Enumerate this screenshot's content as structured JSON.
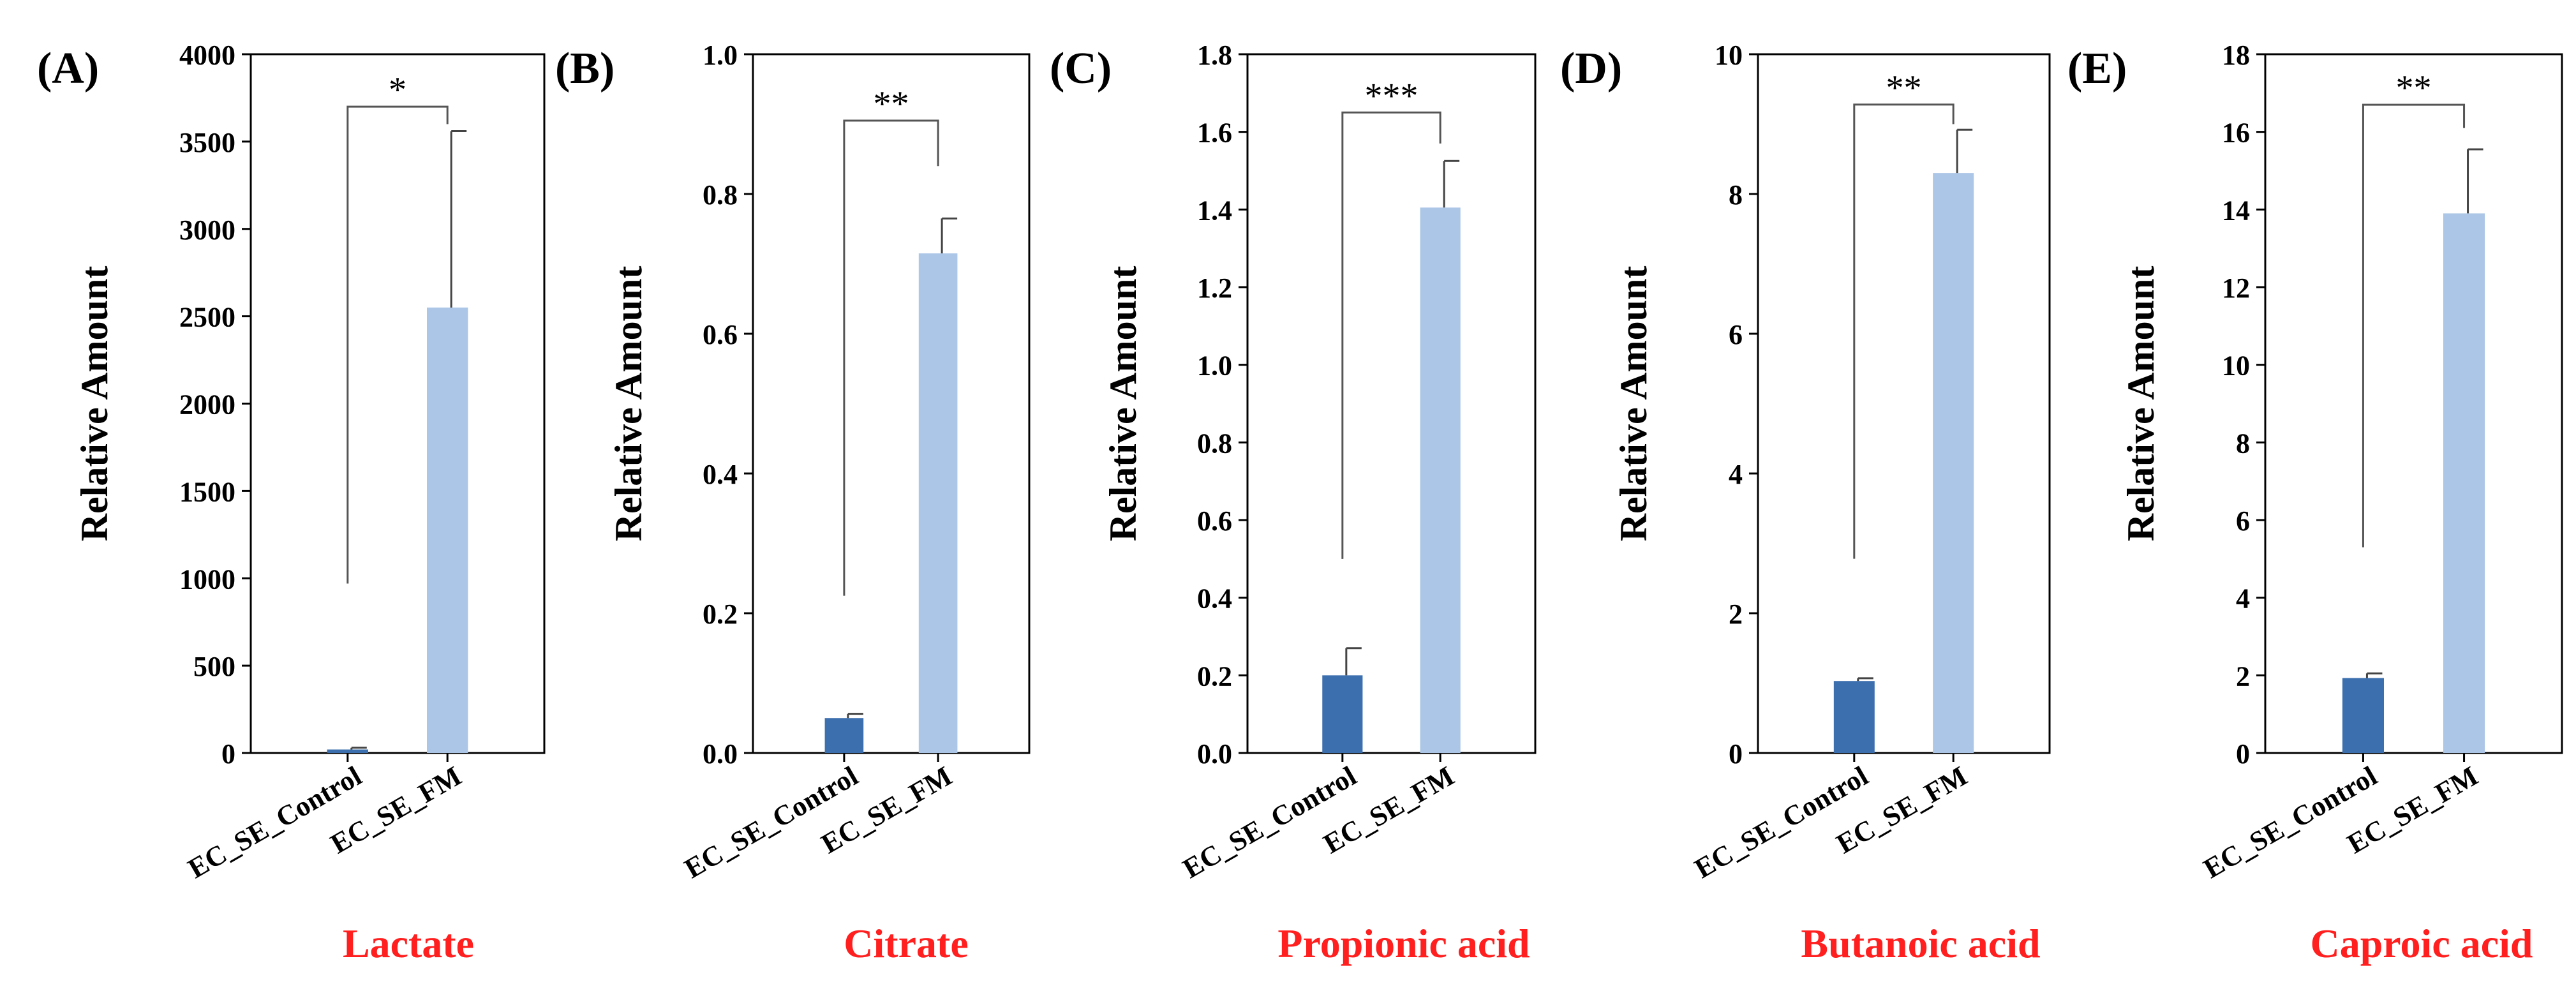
{
  "figure": {
    "x_categories": [
      "EC_SE_Control",
      "EC_SE_FM"
    ],
    "y_axis_label": "Relative Amount",
    "colors": {
      "control": "#3c6fae",
      "fm": "#abc6e6",
      "axis": "#000000",
      "bracket": "#555555",
      "error_bar": "#444444",
      "metabolite_label": "#ff1f1f"
    }
  },
  "chart_data": [
    {
      "type": "bar",
      "panel_label": "(A)",
      "title": "Lactate",
      "ylabel": "Relative Amount",
      "categories": [
        "EC_SE_Control",
        "EC_SE_FM"
      ],
      "values": [
        20,
        2550
      ],
      "error_upper": [
        10,
        1010
      ],
      "ylim": [
        0,
        4000
      ],
      "yticks": [
        0,
        500,
        1000,
        1500,
        2000,
        2500,
        3000,
        3500,
        4000
      ],
      "ytick_labels": [
        "0",
        "500",
        "1000",
        "1500",
        "2000",
        "2500",
        "3000",
        "3500",
        "4000"
      ],
      "significance": "*",
      "bracket_y": 3700,
      "bracket_left_bottom": 970,
      "bracket_right_bottom": 3600
    },
    {
      "type": "bar",
      "panel_label": "(B)",
      "title": "Citrate",
      "ylabel": "Relative Amount",
      "categories": [
        "EC_SE_Control",
        "EC_SE_FM"
      ],
      "values": [
        0.05,
        0.715
      ],
      "error_upper": [
        0.006,
        0.05
      ],
      "ylim": [
        0,
        1.0
      ],
      "yticks": [
        0,
        0.2,
        0.4,
        0.6,
        0.8,
        1.0
      ],
      "ytick_labels": [
        "0.0",
        "0.2",
        "0.4",
        "0.6",
        "0.8",
        "1.0"
      ],
      "significance": "**",
      "bracket_y": 0.905,
      "bracket_left_bottom": 0.225,
      "bracket_right_bottom": 0.84
    },
    {
      "type": "bar",
      "panel_label": "(C)",
      "title": "Propionic acid",
      "ylabel": "Relative Amount",
      "categories": [
        "EC_SE_Control",
        "EC_SE_FM"
      ],
      "values": [
        0.2,
        1.405
      ],
      "error_upper": [
        0.07,
        0.12
      ],
      "ylim": [
        0,
        1.8
      ],
      "yticks": [
        0,
        0.2,
        0.4,
        0.6,
        0.8,
        1.0,
        1.2,
        1.4,
        1.6,
        1.8
      ],
      "ytick_labels": [
        "0.0",
        "0.2",
        "0.4",
        "0.6",
        "0.8",
        "1.0",
        "1.2",
        "1.4",
        "1.6",
        "1.8"
      ],
      "significance": "***",
      "bracket_y": 1.65,
      "bracket_left_bottom": 0.5,
      "bracket_right_bottom": 1.57
    },
    {
      "type": "bar",
      "panel_label": "(D)",
      "title": "Butanoic acid",
      "ylabel": "Relative Amount",
      "categories": [
        "EC_SE_Control",
        "EC_SE_FM"
      ],
      "values": [
        1.03,
        8.3
      ],
      "error_upper": [
        0.04,
        0.62
      ],
      "ylim": [
        0,
        10
      ],
      "yticks": [
        0,
        2,
        4,
        6,
        8,
        10
      ],
      "ytick_labels": [
        "0",
        "2",
        "4",
        "6",
        "8",
        "10"
      ],
      "significance": "**",
      "bracket_y": 9.28,
      "bracket_left_bottom": 2.78,
      "bracket_right_bottom": 9.0
    },
    {
      "type": "bar",
      "panel_label": "(E)",
      "title": "Caproic acid",
      "ylabel": "Relative Amount",
      "categories": [
        "EC_SE_Control",
        "EC_SE_FM"
      ],
      "values": [
        1.93,
        13.9
      ],
      "error_upper": [
        0.12,
        1.65
      ],
      "ylim": [
        0,
        18
      ],
      "yticks": [
        0,
        2,
        4,
        6,
        8,
        10,
        12,
        14,
        16,
        18
      ],
      "ytick_labels": [
        "0",
        "2",
        "4",
        "6",
        "8",
        "10",
        "12",
        "14",
        "16",
        "18"
      ],
      "significance": "**",
      "bracket_y": 16.7,
      "bracket_left_bottom": 5.3,
      "bracket_right_bottom": 16.1
    }
  ]
}
